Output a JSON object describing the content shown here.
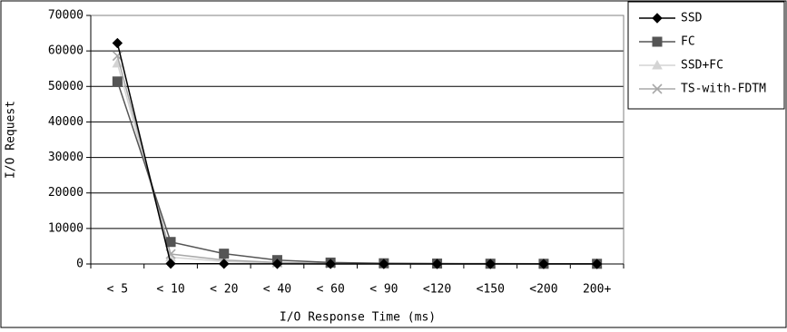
{
  "chart_data": {
    "type": "line",
    "title": "",
    "xlabel": "I/O Response Time (ms)",
    "ylabel": "I/O Request",
    "categories": [
      "< 5",
      "< 10",
      "< 20",
      "< 40",
      "< 60",
      "< 90",
      "<120",
      "<150",
      "<200",
      "200+"
    ],
    "y_ticks": [
      "0",
      "10000",
      "20000",
      "30000",
      "40000",
      "50000",
      "60000",
      "70000"
    ],
    "ylim": [
      0,
      70000
    ],
    "grid": true,
    "legend_position": "right",
    "series": [
      {
        "name": "SSD",
        "marker": "diamond",
        "color": "#000000",
        "values": [
          62200,
          100,
          50,
          20,
          10,
          5,
          5,
          5,
          5,
          5
        ]
      },
      {
        "name": "FC",
        "marker": "square",
        "color": "#555555",
        "values": [
          51400,
          6200,
          2900,
          1100,
          400,
          200,
          120,
          80,
          60,
          50
        ]
      },
      {
        "name": "SSD+FC",
        "marker": "triangle",
        "color": "#d4d4d4",
        "values": [
          56500,
          1900,
          700,
          250,
          100,
          50,
          30,
          20,
          15,
          10
        ]
      },
      {
        "name": "TS-with-FDTM",
        "marker": "x",
        "color": "#a8a8a8",
        "values": [
          58600,
          2800,
          1100,
          400,
          150,
          70,
          40,
          30,
          20,
          15
        ]
      }
    ]
  }
}
